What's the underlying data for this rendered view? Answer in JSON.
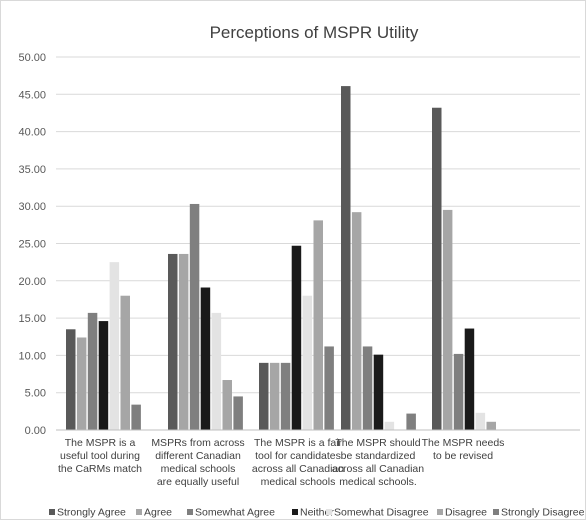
{
  "chart_data": {
    "type": "bar",
    "title": "Perceptions of MSPR Utility",
    "xlabel": "",
    "ylabel": "",
    "ylim": [
      0,
      50
    ],
    "yticks": [
      "0.00",
      "5.00",
      "10.00",
      "15.00",
      "20.00",
      "25.00",
      "30.00",
      "35.00",
      "40.00",
      "45.00",
      "50.00"
    ],
    "grid": true,
    "legend_position": "bottom",
    "categories": [
      [
        "The MSPR is a",
        "useful tool during",
        "the CaRMs match"
      ],
      [
        "MSPRs from across",
        "different Canadian",
        "medical schools",
        "are equally useful"
      ],
      [
        "The MSPR is a fair",
        "tool for candidates",
        "across all Canadian",
        "medical schools"
      ],
      [
        "The MSPR should",
        "be standardized",
        "across all Canadian",
        "medical schools."
      ],
      [
        "The MSPR needs",
        "to be revised"
      ]
    ],
    "series": [
      {
        "name": "Strongly Agree",
        "color": "#595959",
        "values": [
          13.5,
          23.6,
          9.0,
          46.1,
          43.2
        ]
      },
      {
        "name": "Agree",
        "color": "#a6a6a6",
        "values": [
          12.4,
          23.6,
          9.0,
          29.2,
          29.5
        ]
      },
      {
        "name": "Somewhat Agree",
        "color": "#7f7f7f",
        "values": [
          15.7,
          30.3,
          9.0,
          11.2,
          10.2
        ]
      },
      {
        "name": "Neither",
        "color": "#1a1a1a",
        "values": [
          14.6,
          19.1,
          24.7,
          10.1,
          13.6
        ]
      },
      {
        "name": "Somewhat Disagree",
        "color": "#e3e3e3",
        "values": [
          22.5,
          15.7,
          18.0,
          1.1,
          2.3
        ]
      },
      {
        "name": "Disagree",
        "color": "#a6a6a6",
        "values": [
          18.0,
          6.7,
          28.1,
          0.0,
          1.1
        ]
      },
      {
        "name": "Strongly Disagree",
        "color": "#7f7f7f",
        "values": [
          3.4,
          4.5,
          11.2,
          2.2,
          0.0
        ]
      }
    ]
  }
}
